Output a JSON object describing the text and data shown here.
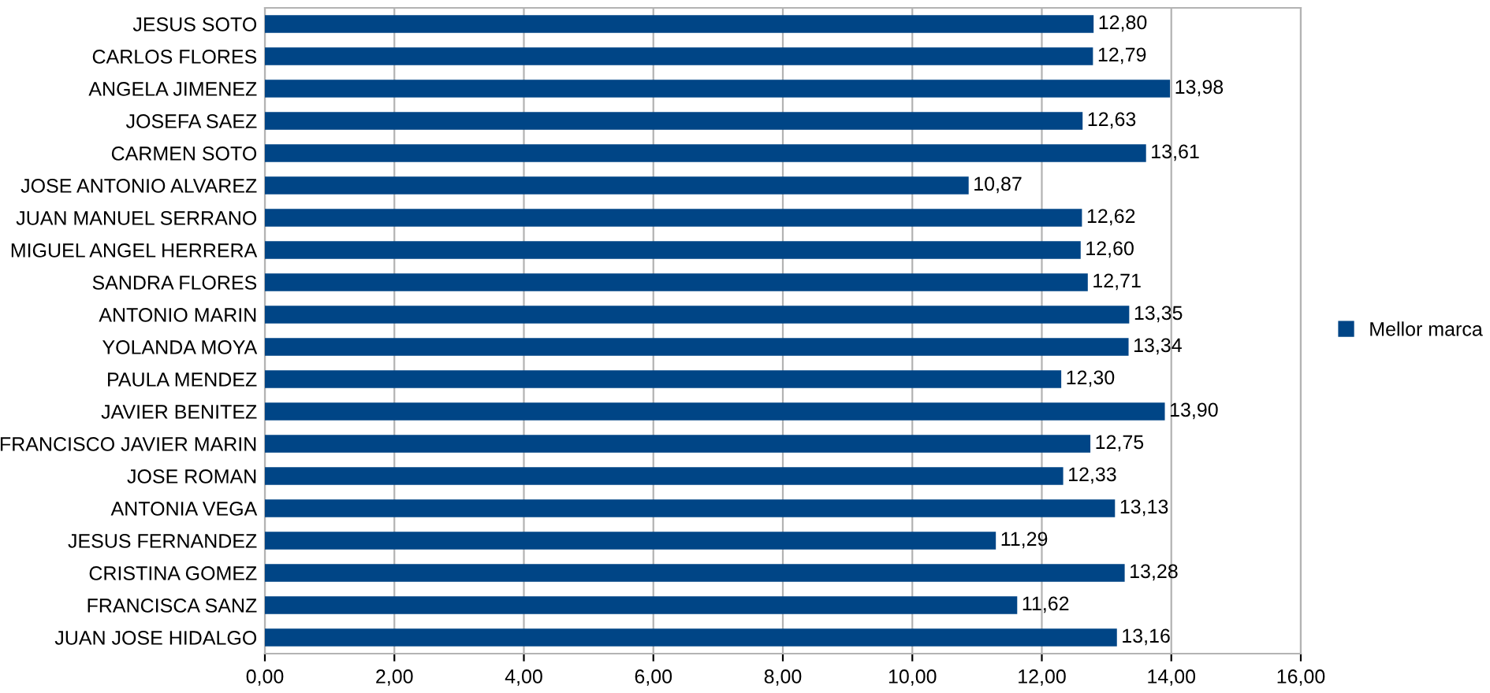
{
  "chart_data": {
    "type": "bar",
    "orientation": "horizontal",
    "categories": [
      "JESUS SOTO",
      "CARLOS FLORES",
      "ANGELA JIMENEZ",
      "JOSEFA SAEZ",
      "CARMEN SOTO",
      "JOSE ANTONIO ALVAREZ",
      "JUAN MANUEL SERRANO",
      "MIGUEL ANGEL HERRERA",
      "SANDRA FLORES",
      "ANTONIO MARIN",
      "YOLANDA MOYA",
      "PAULA MENDEZ",
      "JAVIER BENITEZ",
      "FRANCISCO JAVIER MARIN",
      "JOSE ROMAN",
      "ANTONIA VEGA",
      "JESUS FERNANDEZ",
      "CRISTINA GOMEZ",
      "FRANCISCA SANZ",
      "JUAN JOSE HIDALGO"
    ],
    "series": [
      {
        "name": "Mellor marca",
        "color": "#004586",
        "values": [
          12.8,
          12.79,
          13.98,
          12.63,
          13.61,
          10.87,
          12.62,
          12.6,
          12.71,
          13.35,
          13.34,
          12.3,
          13.9,
          12.75,
          12.33,
          13.13,
          11.29,
          13.28,
          11.62,
          13.16
        ],
        "value_labels": [
          "12,80",
          "12,79",
          "13,98",
          "12,63",
          "13,61",
          "10,87",
          "12,62",
          "12,60",
          "12,71",
          "13,35",
          "13,34",
          "12,30",
          "13,90",
          "12,75",
          "12,33",
          "13,13",
          "11,29",
          "13,28",
          "11,62",
          "13,16"
        ]
      }
    ],
    "xlim": [
      0,
      16
    ],
    "xticks": [
      {
        "value": 0,
        "label": "0,00"
      },
      {
        "value": 2,
        "label": "2,00"
      },
      {
        "value": 4,
        "label": "4,00"
      },
      {
        "value": 6,
        "label": "6,00"
      },
      {
        "value": 8,
        "label": "8,00"
      },
      {
        "value": 10,
        "label": "10,00"
      },
      {
        "value": 12,
        "label": "12,00"
      },
      {
        "value": 14,
        "label": "14,00"
      },
      {
        "value": 16,
        "label": "16,00"
      }
    ],
    "grid": "x",
    "legend": "right"
  }
}
